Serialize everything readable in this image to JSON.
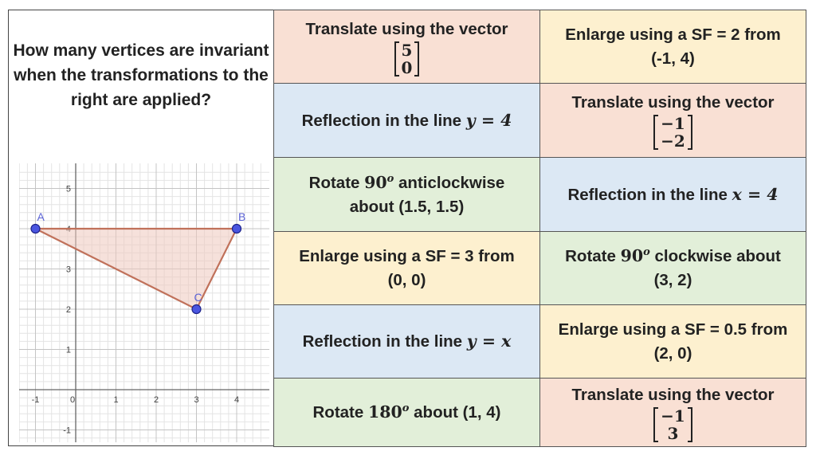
{
  "question": "How many vertices are invariant when the transformations to the right are applied?",
  "cells": [
    {
      "row": 0,
      "col": 0,
      "bg": "#f9e0d4",
      "pre": "Translate using the vector",
      "vector": [
        "5",
        "0"
      ]
    },
    {
      "row": 0,
      "col": 1,
      "bg": "#fdf0cf",
      "line1": "Enlarge using a SF = 2 from",
      "line2": "(-1, 4)"
    },
    {
      "row": 1,
      "col": 0,
      "bg": "#dce8f4",
      "text": "Reflection in the line ",
      "math": "y = 4"
    },
    {
      "row": 1,
      "col": 1,
      "bg": "#f9e0d4",
      "pre": "Translate using the vector",
      "vector": [
        "−1",
        "−2"
      ]
    },
    {
      "row": 2,
      "col": 0,
      "bg": "#e2efd9",
      "line1a": "Rotate ",
      "angle": "90",
      "angle_sup": "o",
      "line1b": " anticlockwise",
      "line2": "about (1.5, 1.5)"
    },
    {
      "row": 2,
      "col": 1,
      "bg": "#dce8f4",
      "text": "Reflection in the line ",
      "math": "x = 4"
    },
    {
      "row": 3,
      "col": 0,
      "bg": "#fdf0cf",
      "line1": "Enlarge using a SF = 3 from",
      "line2": "(0, 0)"
    },
    {
      "row": 3,
      "col": 1,
      "bg": "#e2efd9",
      "line1a": "Rotate ",
      "angle": "90",
      "angle_sup": "o",
      "line1b": " clockwise about",
      "line2": "(3, 2)"
    },
    {
      "row": 4,
      "col": 0,
      "bg": "#dce8f4",
      "text": "Reflection in the line ",
      "math": "y = x"
    },
    {
      "row": 4,
      "col": 1,
      "bg": "#fdf0cf",
      "line1": "Enlarge using a SF = 0.5 from",
      "line2": "(2, 0)"
    },
    {
      "row": 5,
      "col": 0,
      "bg": "#e2efd9",
      "line1a": "Rotate ",
      "angle": "180",
      "angle_sup": "o",
      "line1b": " about (1, 4)"
    },
    {
      "row": 5,
      "col": 1,
      "bg": "#f9e0d4",
      "pre": "Translate using the vector",
      "vector": [
        "−1",
        "3"
      ]
    }
  ],
  "graph": {
    "x_ticks": [
      "-1",
      "0",
      "1",
      "2",
      "3",
      "4"
    ],
    "y_ticks": [
      "5",
      "4",
      "3",
      "2",
      "1",
      "-1"
    ],
    "vertices": [
      {
        "label": "A",
        "x": -1,
        "y": 4
      },
      {
        "label": "B",
        "x": 4,
        "y": 4
      },
      {
        "label": "C",
        "x": 3,
        "y": 2
      }
    ],
    "colors": {
      "triangle_stroke": "#c0715a",
      "triangle_fill": "#efc9bd",
      "point": "#4a55e0",
      "label": "#5b63d6"
    }
  }
}
